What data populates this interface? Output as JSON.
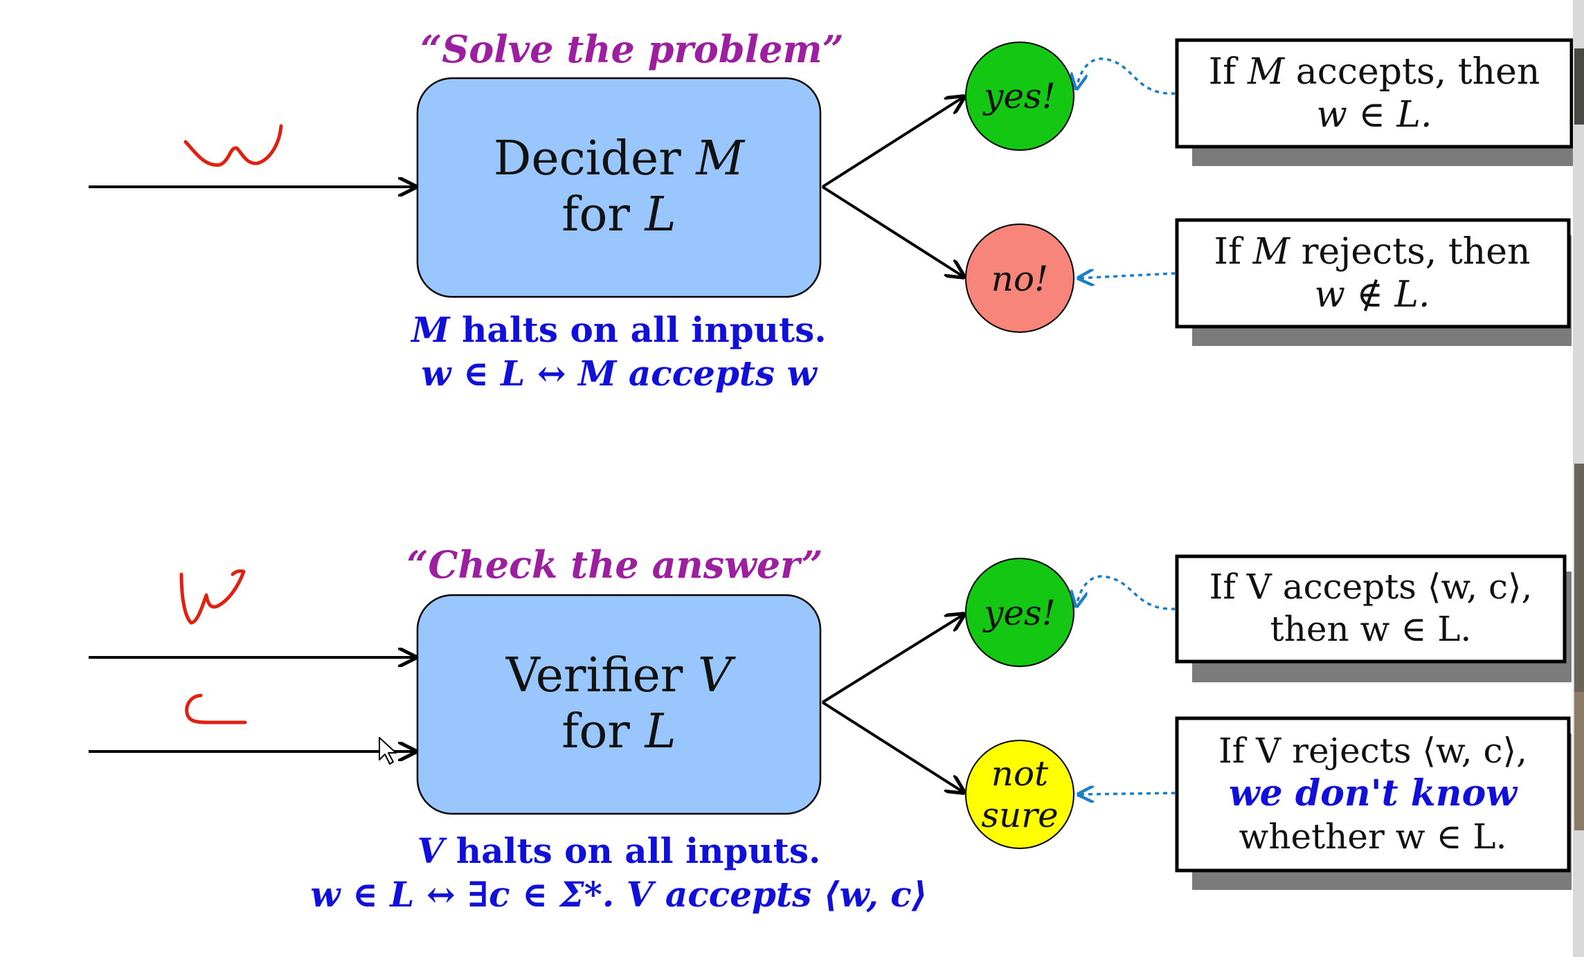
{
  "colors": {
    "box_fill": "#99c7fd",
    "yes_fill": "#13c713",
    "no_fill": "#f7857a",
    "notsure_fill": "#ffff00",
    "purple": "#9b1f9e",
    "blue": "#1010d8",
    "handwriting": "#e02010",
    "dotted": "#1a7fc4",
    "shadow": "#7b7b7b"
  },
  "top": {
    "tagline": "“Solve the problem”",
    "box_line1_text": "Decider ",
    "box_line1_var": "M",
    "box_line2_text": "for ",
    "box_line2_var": "L",
    "caption_line1_var": "M",
    "caption_line1_text": " halts on all inputs.",
    "caption_line2": "w ∈ L ↔ M accepts w",
    "outcome_yes": "yes!",
    "outcome_no": "no!",
    "note_yes_line1_pre": "If ",
    "note_yes_line1_var": "M",
    "note_yes_line1_post": " accepts, then",
    "note_yes_line2": "w ∈ L.",
    "note_no_line1_pre": "If ",
    "note_no_line1_var": "M",
    "note_no_line1_post": " rejects, then",
    "note_no_line2": "w ∉ L."
  },
  "bottom": {
    "tagline": "“Check the answer”",
    "box_line1_text": "Verifier ",
    "box_line1_var": "V",
    "box_line2_text": "for ",
    "box_line2_var": "L",
    "caption_line1_var": "V",
    "caption_line1_text": " halts on all inputs.",
    "caption_line2": "w ∈ L ↔ ∃c ∈ Σ*. V accepts ⟨w, c⟩",
    "outcome_yes": "yes!",
    "outcome_notsure_line1": "not",
    "outcome_notsure_line2": "sure",
    "note_yes_line1": "If V accepts ⟨w, c⟩,",
    "note_yes_line2": "then w ∈ L.",
    "note_ns_line1": "If V rejects ⟨w, c⟩,",
    "note_ns_line2": "we don't know",
    "note_ns_line3": "whether w ∈ L."
  }
}
